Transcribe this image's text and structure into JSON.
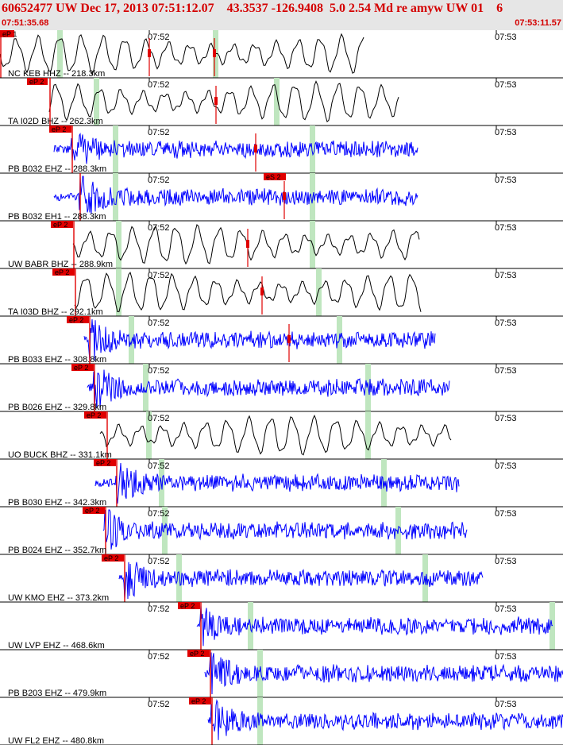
{
  "header": {
    "title": "60652477 UW Dec 17, 2013 07:51:12.07    43.3537 -126.9408  5.0 2.54 Md re amyw UW 01    6",
    "start_time": "07:51:35.68",
    "end_time": "07:53:11.57"
  },
  "tick_labels": [
    "07:52",
    "07:53"
  ],
  "colors": {
    "header_text": "#d40000",
    "pick": "#e00000",
    "highlight": "#bfe6bf",
    "wave_blue": "#0000ff",
    "wave_black": "#000000"
  },
  "traces": [
    {
      "label": "NC KEB HHZ -- 218.3km",
      "pick_label": "eP 1",
      "color": "black",
      "kind": "lp"
    },
    {
      "label": "TA I02D BHZ -- 262.3km",
      "pick_label": "eP 2",
      "color": "black",
      "kind": "lp"
    },
    {
      "label": "PB B032 EHZ -- 288.3km",
      "pick_label": "eP 2",
      "color": "blue",
      "kind": "sp"
    },
    {
      "label": "PB B032 EH1 -- 288.3km",
      "pick_label": "eS 2",
      "color": "blue",
      "kind": "sp"
    },
    {
      "label": "UW BABR BHZ -- 288.9km",
      "pick_label": "eP 2",
      "color": "black",
      "kind": "lp"
    },
    {
      "label": "TA I03D BHZ -- 292.1km",
      "pick_label": "eP 2",
      "color": "black",
      "kind": "lp"
    },
    {
      "label": "PB B033 EHZ -- 308.8km",
      "pick_label": "eP 2",
      "color": "blue",
      "kind": "sp"
    },
    {
      "label": "PB B026 EHZ -- 329.8km",
      "pick_label": "eP 2",
      "color": "blue",
      "kind": "sp"
    },
    {
      "label": "UO BUCK BHZ -- 331.1km",
      "pick_label": "eP 2",
      "color": "black",
      "kind": "lp"
    },
    {
      "label": "PB B030 EHZ -- 342.3km",
      "pick_label": "eP 2",
      "color": "blue",
      "kind": "sp"
    },
    {
      "label": "PB B024 EHZ -- 352.7km",
      "pick_label": "eP 2",
      "color": "blue",
      "kind": "sp"
    },
    {
      "label": "UW KMO EHZ -- 373.2km",
      "pick_label": "eP 2",
      "color": "blue",
      "kind": "sp"
    },
    {
      "label": "UW LVP EHZ -- 468.6km",
      "pick_label": "eP 2",
      "color": "blue",
      "kind": "sp"
    },
    {
      "label": "PB B203 EHZ -- 479.9km",
      "pick_label": "eP 2",
      "color": "blue",
      "kind": "sp"
    },
    {
      "label": "UW FL2 EHZ -- 480.8km",
      "pick_label": "eP 2",
      "color": "blue",
      "kind": "sp"
    }
  ]
}
